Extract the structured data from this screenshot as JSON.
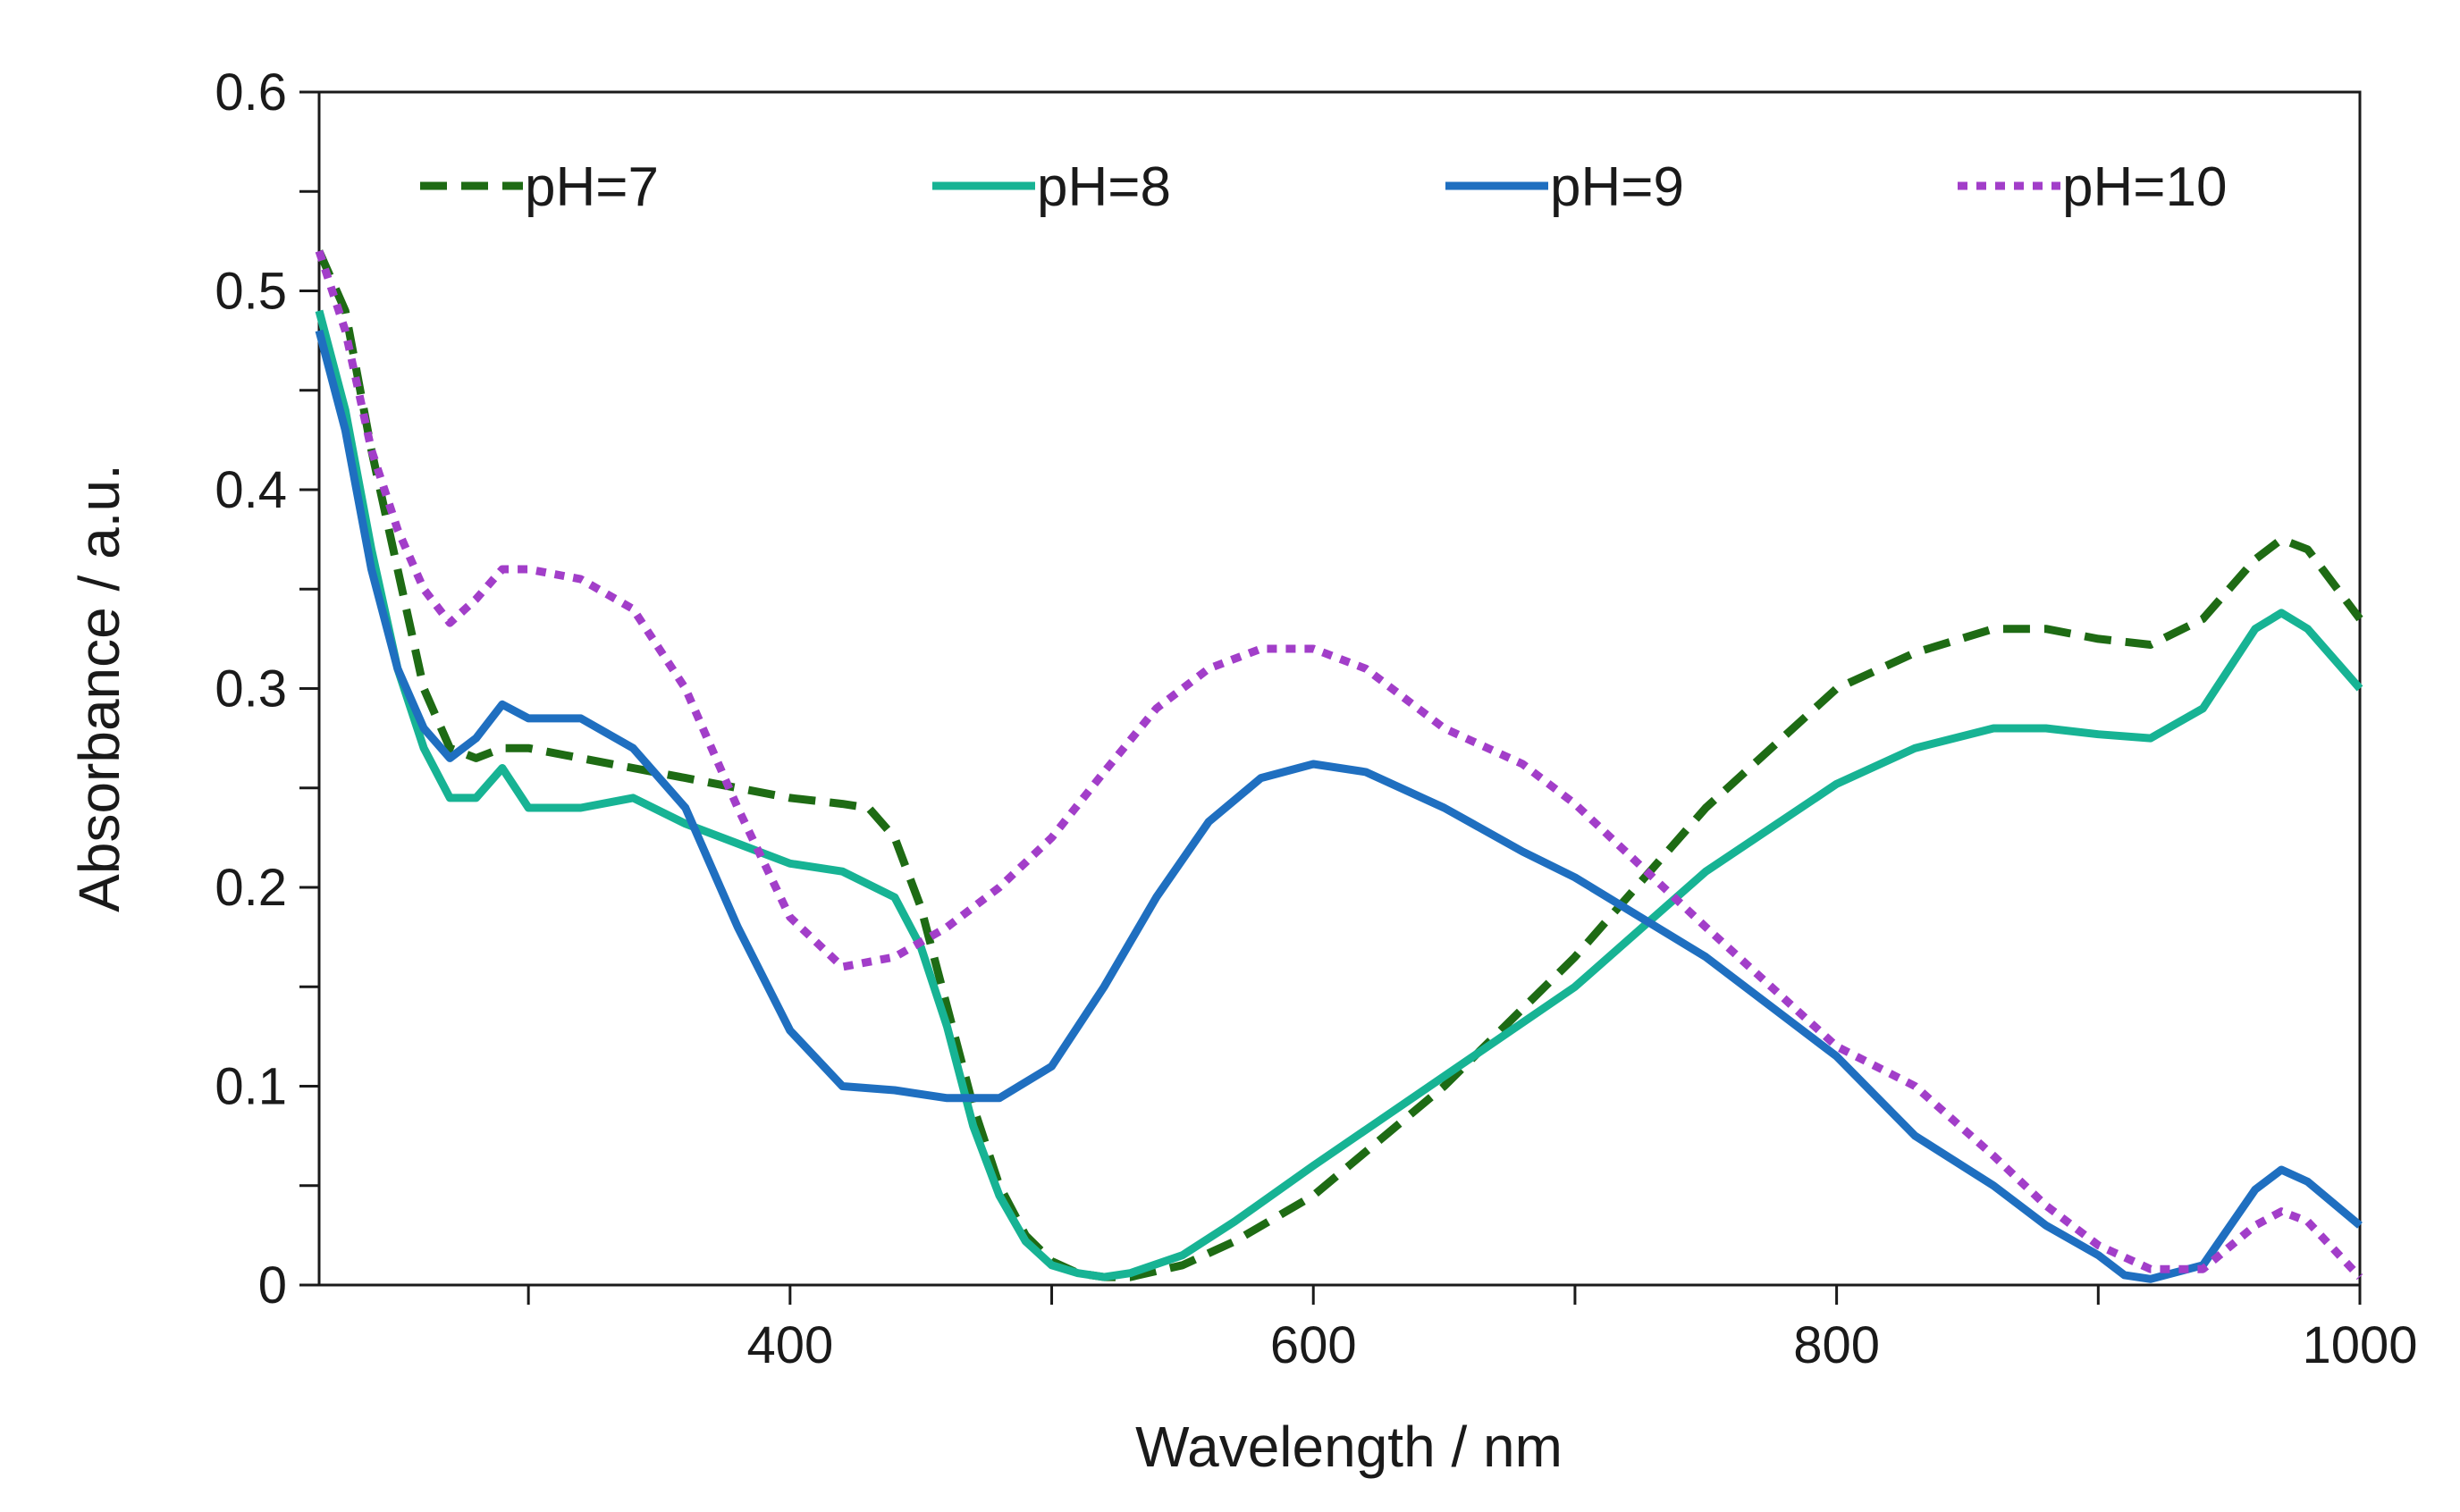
{
  "chart_data": {
    "type": "line",
    "title": "",
    "xlabel": "Wavelength / nm",
    "ylabel": "Absorbance / a.u.",
    "xlim": [
      220,
      1000
    ],
    "ylim": [
      0,
      0.6
    ],
    "x_major_ticks": [
      400,
      600,
      800,
      1000
    ],
    "x_minor_ticks": [
      300,
      500,
      700,
      900
    ],
    "x_tick_labels": [
      "400",
      "600",
      "800",
      "1000"
    ],
    "y_major_ticks": [
      0,
      0.1,
      0.2,
      0.3,
      0.4,
      0.5,
      0.6
    ],
    "y_tick_labels": [
      "0",
      "0.1",
      "0.2",
      "0.3",
      "0.4",
      "0.5",
      "0.6"
    ],
    "grid": false,
    "legend_position": "top",
    "series": [
      {
        "name": "pH=7",
        "color": "#1e6b14",
        "style": "dashed",
        "x": [
          220,
          230,
          240,
          250,
          260,
          270,
          280,
          290,
          300,
          320,
          340,
          360,
          380,
          400,
          420,
          430,
          440,
          450,
          460,
          470,
          480,
          490,
          500,
          510,
          520,
          530,
          550,
          570,
          600,
          650,
          700,
          750,
          800,
          830,
          860,
          880,
          900,
          920,
          940,
          960,
          970,
          980,
          1000
        ],
        "y": [
          0.52,
          0.49,
          0.42,
          0.36,
          0.3,
          0.27,
          0.265,
          0.27,
          0.27,
          0.265,
          0.26,
          0.255,
          0.25,
          0.245,
          0.242,
          0.24,
          0.225,
          0.19,
          0.14,
          0.09,
          0.05,
          0.025,
          0.012,
          0.006,
          0.004,
          0.004,
          0.01,
          0.022,
          0.045,
          0.1,
          0.165,
          0.24,
          0.3,
          0.318,
          0.33,
          0.33,
          0.325,
          0.322,
          0.335,
          0.365,
          0.375,
          0.37,
          0.335
        ]
      },
      {
        "name": "pH=8",
        "color": "#17b394",
        "style": "solid",
        "x": [
          220,
          230,
          240,
          250,
          260,
          270,
          280,
          290,
          300,
          320,
          340,
          360,
          380,
          400,
          420,
          440,
          450,
          460,
          470,
          480,
          490,
          500,
          510,
          520,
          530,
          550,
          570,
          600,
          650,
          700,
          750,
          800,
          830,
          860,
          880,
          900,
          920,
          940,
          960,
          970,
          980,
          1000
        ],
        "y": [
          0.49,
          0.44,
          0.37,
          0.31,
          0.27,
          0.245,
          0.245,
          0.26,
          0.24,
          0.24,
          0.245,
          0.232,
          0.222,
          0.212,
          0.208,
          0.195,
          0.17,
          0.13,
          0.08,
          0.045,
          0.022,
          0.01,
          0.006,
          0.004,
          0.006,
          0.015,
          0.032,
          0.06,
          0.105,
          0.15,
          0.208,
          0.252,
          0.27,
          0.28,
          0.28,
          0.277,
          0.275,
          0.29,
          0.33,
          0.338,
          0.33,
          0.3
        ]
      },
      {
        "name": "pH=9",
        "color": "#1f6fc0",
        "style": "solid",
        "x": [
          220,
          230,
          240,
          250,
          260,
          270,
          280,
          290,
          300,
          320,
          340,
          360,
          380,
          400,
          420,
          440,
          460,
          480,
          500,
          520,
          540,
          560,
          580,
          600,
          620,
          650,
          680,
          700,
          750,
          800,
          830,
          860,
          880,
          900,
          910,
          920,
          940,
          960,
          970,
          980,
          1000
        ],
        "y": [
          0.48,
          0.43,
          0.36,
          0.31,
          0.28,
          0.265,
          0.275,
          0.292,
          0.285,
          0.285,
          0.27,
          0.24,
          0.18,
          0.128,
          0.1,
          0.098,
          0.094,
          0.094,
          0.11,
          0.15,
          0.195,
          0.233,
          0.255,
          0.262,
          0.258,
          0.24,
          0.218,
          0.205,
          0.165,
          0.115,
          0.075,
          0.05,
          0.03,
          0.015,
          0.005,
          0.003,
          0.01,
          0.048,
          0.058,
          0.052,
          0.03
        ]
      },
      {
        "name": "pH=10",
        "color": "#a23ec9",
        "style": "dotted",
        "x": [
          220,
          230,
          240,
          250,
          260,
          270,
          280,
          290,
          300,
          320,
          340,
          360,
          380,
          400,
          420,
          440,
          460,
          480,
          500,
          520,
          540,
          560,
          580,
          600,
          620,
          650,
          680,
          700,
          750,
          800,
          830,
          860,
          880,
          900,
          920,
          940,
          960,
          970,
          980,
          1000
        ],
        "y": [
          0.52,
          0.48,
          0.42,
          0.38,
          0.35,
          0.333,
          0.345,
          0.36,
          0.36,
          0.355,
          0.34,
          0.3,
          0.24,
          0.185,
          0.16,
          0.165,
          0.18,
          0.2,
          0.225,
          0.258,
          0.29,
          0.31,
          0.32,
          0.32,
          0.31,
          0.28,
          0.262,
          0.242,
          0.18,
          0.12,
          0.1,
          0.065,
          0.04,
          0.02,
          0.008,
          0.008,
          0.03,
          0.037,
          0.032,
          0.004
        ]
      }
    ]
  }
}
